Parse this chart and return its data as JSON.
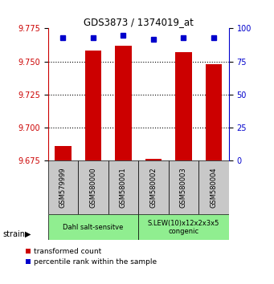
{
  "title": "GDS3873 / 1374019_at",
  "samples": [
    "GSM579999",
    "GSM580000",
    "GSM580001",
    "GSM580002",
    "GSM580003",
    "GSM580004"
  ],
  "red_values": [
    9.686,
    9.758,
    9.762,
    9.676,
    9.757,
    9.748
  ],
  "blue_values": [
    93,
    93,
    95,
    92,
    93,
    93
  ],
  "ylim_left": [
    9.675,
    9.775
  ],
  "ylim_right": [
    0,
    100
  ],
  "yticks_left": [
    9.675,
    9.7,
    9.725,
    9.75,
    9.775
  ],
  "yticks_right": [
    0,
    25,
    50,
    75,
    100
  ],
  "bar_base": 9.675,
  "groups": [
    {
      "label": "Dahl salt-sensitve",
      "color": "#90EE90",
      "start": 0,
      "end": 3
    },
    {
      "label": "S.LEW(10)x12x2x3x5\ncongenic",
      "color": "#90EE90",
      "start": 3,
      "end": 6
    }
  ],
  "red_color": "#CC0000",
  "blue_color": "#0000CC",
  "bg_color": "#C8C8C8",
  "left_tick_color": "#CC0000",
  "right_tick_color": "#0000CC",
  "bar_width": 0.55,
  "legend_red": "transformed count",
  "legend_blue": "percentile rank within the sample",
  "strain_label": "strain"
}
